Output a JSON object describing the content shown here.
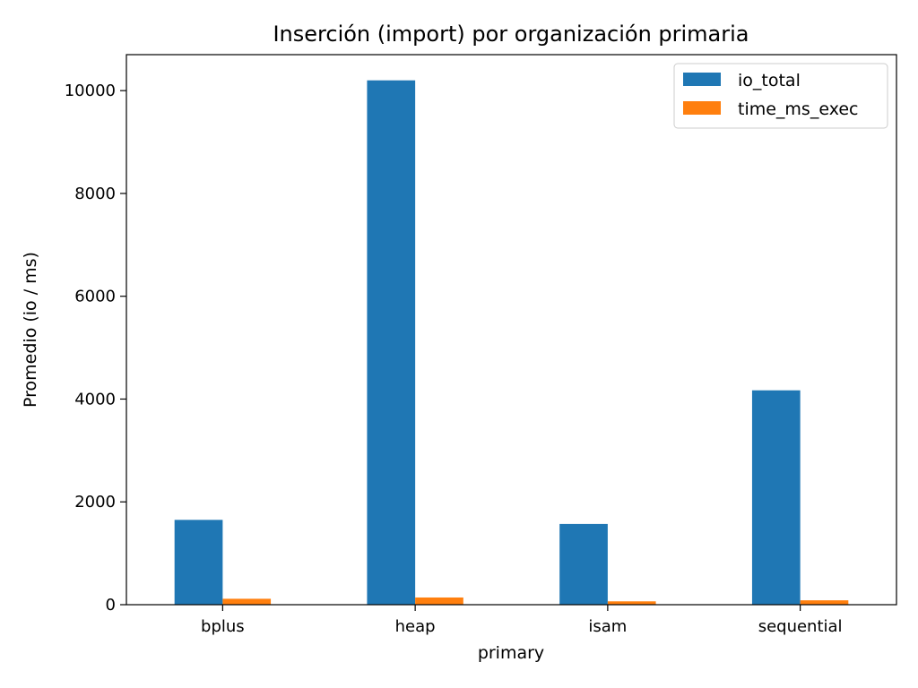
{
  "chart_data": {
    "type": "bar",
    "title": "Inserción (import) por organización primaria",
    "xlabel": "primary",
    "ylabel": "Promedio (io / ms)",
    "categories": [
      "bplus",
      "heap",
      "isam",
      "sequential"
    ],
    "series": [
      {
        "name": "io_total",
        "color": "#1f77b4",
        "values": [
          1650,
          10200,
          1570,
          4170
        ]
      },
      {
        "name": "time_ms_exec",
        "color": "#ff7f0e",
        "values": [
          115,
          140,
          65,
          85
        ]
      }
    ],
    "ylim": [
      0,
      10700
    ],
    "yticks": [
      0,
      2000,
      4000,
      6000,
      8000,
      10000
    ],
    "ytick_labels": [
      "0",
      "2000",
      "4000",
      "6000",
      "8000",
      "10000"
    ],
    "grid": false,
    "legend_position": "top-right"
  }
}
